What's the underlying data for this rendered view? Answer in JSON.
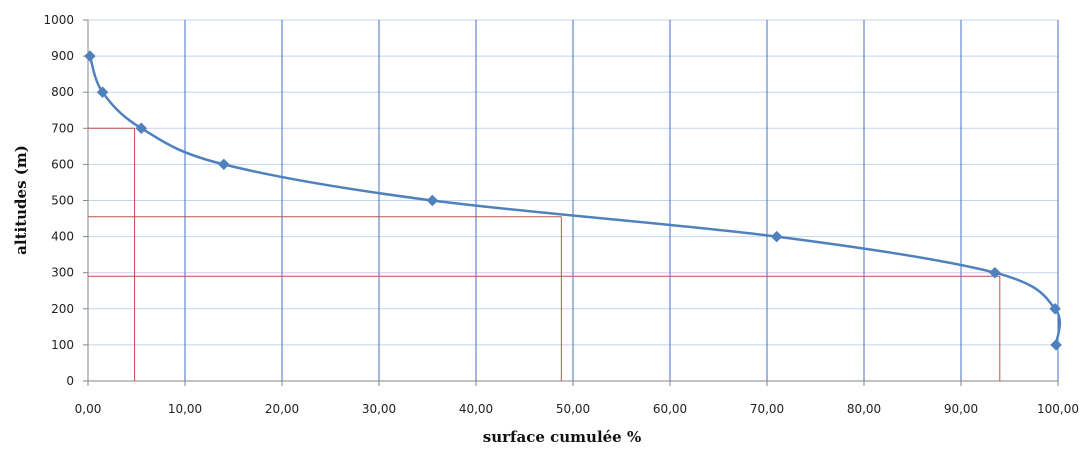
{
  "chart_data": {
    "type": "line",
    "title": "",
    "xlabel": "surface cumulée %",
    "ylabel": "altitudes (m)",
    "xlim": [
      0,
      100
    ],
    "ylim": [
      0,
      1000
    ],
    "x_ticks": [
      0,
      10,
      20,
      30,
      40,
      50,
      60,
      70,
      80,
      90,
      100
    ],
    "y_ticks": [
      0,
      100,
      200,
      300,
      400,
      500,
      600,
      700,
      800,
      900,
      1000
    ],
    "x_tick_labels": [
      "0,00",
      "10,00",
      "20,00",
      "30,00",
      "40,00",
      "50,00",
      "60,00",
      "70,00",
      "80,00",
      "90,00",
      "100,00"
    ],
    "y_tick_labels": [
      "0",
      "100",
      "200",
      "300",
      "400",
      "500",
      "600",
      "700",
      "800",
      "900",
      "1000"
    ],
    "grid": true,
    "legend": "none",
    "series": [
      {
        "color": "#4F81BD",
        "marker": "diamond",
        "smooth": true,
        "points": [
          {
            "x": 0.2,
            "y": 900
          },
          {
            "x": 1.5,
            "y": 800
          },
          {
            "x": 5.5,
            "y": 700
          },
          {
            "x": 14.0,
            "y": 600
          },
          {
            "x": 35.5,
            "y": 500
          },
          {
            "x": 71.0,
            "y": 400
          },
          {
            "x": 93.5,
            "y": 300
          },
          {
            "x": 99.7,
            "y": 200
          },
          {
            "x": 99.8,
            "y": 100
          }
        ]
      }
    ],
    "reference_lines": {
      "color": "#C0504D",
      "items": [
        {
          "x": 4.8,
          "y": 700
        },
        {
          "x": 48.8,
          "y": 455
        },
        {
          "x": 94.0,
          "y": 290
        }
      ]
    },
    "colors": {
      "vertical_grid": "#4472C4",
      "horizontal_grid": "#C5D4EA",
      "axis": "#868686"
    }
  }
}
